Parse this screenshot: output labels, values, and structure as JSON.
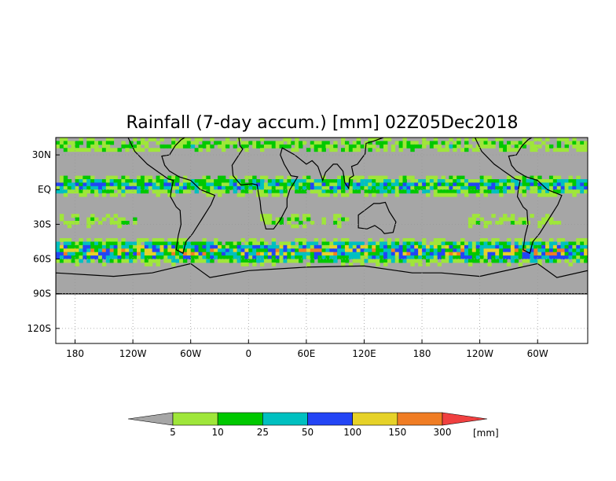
{
  "title": "Rainfall (7-day accum.) [mm] 02Z05Dec2018",
  "map": {
    "lat_labels": [
      "30N",
      "EQ",
      "30S",
      "60S",
      "90S",
      "120S"
    ],
    "lat_values": [
      30,
      0,
      -30,
      -60,
      -90,
      -120
    ],
    "lon_labels": [
      "180",
      "120W",
      "60W",
      "0",
      "60E",
      "120E",
      "180",
      "120W",
      "60W"
    ],
    "lon_values": [
      -180,
      -120,
      -60,
      0,
      60,
      120,
      180,
      240,
      300
    ],
    "lat_range": [
      -133,
      45
    ],
    "lon_range": [
      -200,
      352
    ],
    "data_lat_range": [
      -90,
      45
    ],
    "no_data_color": "#a6a6a6",
    "coastline_color": "#000000",
    "grid": "dotted"
  },
  "colorbar": {
    "unit": "[mm]",
    "labels": [
      "5",
      "10",
      "25",
      "50",
      "100",
      "150",
      "300"
    ],
    "colors": [
      "#a6a6a6",
      "#9fe63a",
      "#00c800",
      "#00c0c0",
      "#2345f5",
      "#e6d228",
      "#f07d24",
      "#f04040"
    ]
  }
}
